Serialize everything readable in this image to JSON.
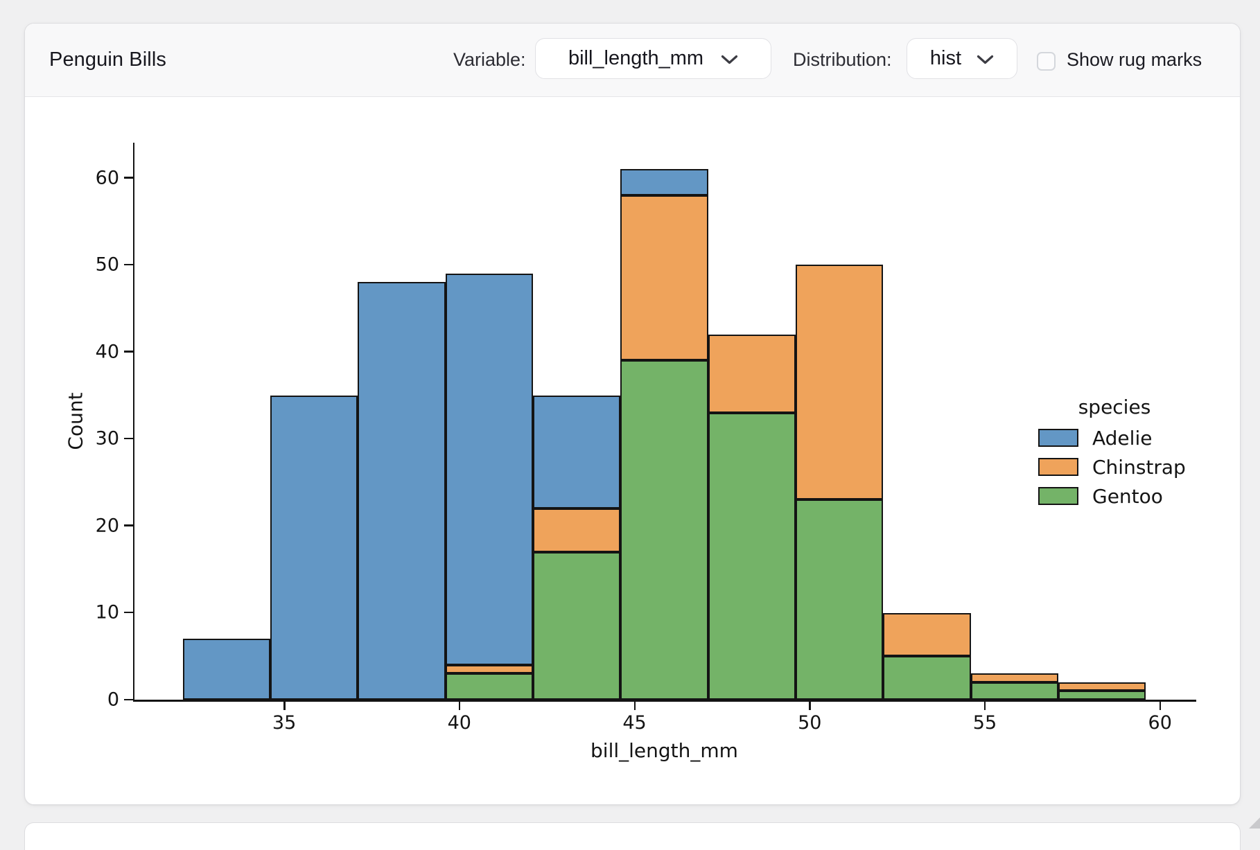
{
  "header": {
    "title": "Penguin Bills",
    "variable_label": "Variable:",
    "variable_value": "bill_length_mm",
    "distribution_label": "Distribution:",
    "distribution_value": "hist",
    "rug_label": "Show rug marks",
    "rug_checked": false
  },
  "icons": {
    "variable_chevron": "chevron-down-icon",
    "distribution_chevron": "chevron-down-icon"
  },
  "colors": {
    "adelie": "#6397c5",
    "chinstrap": "#efa35b",
    "gentoo": "#74b368",
    "bar_edge": "#141414",
    "page_bg": "#f0f0f1",
    "card_bg": "#ffffff",
    "header_bg": "#f8f8f9"
  },
  "chart_data": {
    "type": "bar",
    "subtype": "stacked-histogram",
    "title": "",
    "xlabel": "bill_length_mm",
    "ylabel": "Count",
    "bin_edges": [
      32.1,
      34.6,
      37.1,
      39.6,
      42.1,
      44.6,
      47.1,
      49.6,
      52.1,
      54.6,
      57.1,
      59.6
    ],
    "series": [
      {
        "name": "Adelie",
        "color": "#6397c5",
        "values": [
          7,
          35,
          48,
          45,
          13,
          3,
          0,
          0,
          0,
          0,
          0
        ]
      },
      {
        "name": "Chinstrap",
        "color": "#efa35b",
        "values": [
          0,
          0,
          0,
          1,
          5,
          19,
          9,
          27,
          5,
          1,
          1
        ]
      },
      {
        "name": "Gentoo",
        "color": "#74b368",
        "values": [
          0,
          0,
          0,
          3,
          17,
          39,
          33,
          23,
          5,
          2,
          1
        ]
      }
    ],
    "stack_order_bottom_to_top": [
      "Gentoo",
      "Chinstrap",
      "Adelie"
    ],
    "bin_totals": [
      7,
      35,
      48,
      49,
      35,
      61,
      42,
      50,
      10,
      3,
      2
    ],
    "x_ticks": [
      35,
      40,
      45,
      50,
      55,
      60
    ],
    "y_ticks": [
      0,
      10,
      20,
      30,
      40,
      50,
      60
    ],
    "xlim": [
      30.725,
      60.975
    ],
    "ylim": [
      0,
      64.05
    ],
    "grid": false,
    "legend_title": "species",
    "legend_entries": [
      "Adelie",
      "Chinstrap",
      "Gentoo"
    ],
    "legend_position": "center-right"
  }
}
